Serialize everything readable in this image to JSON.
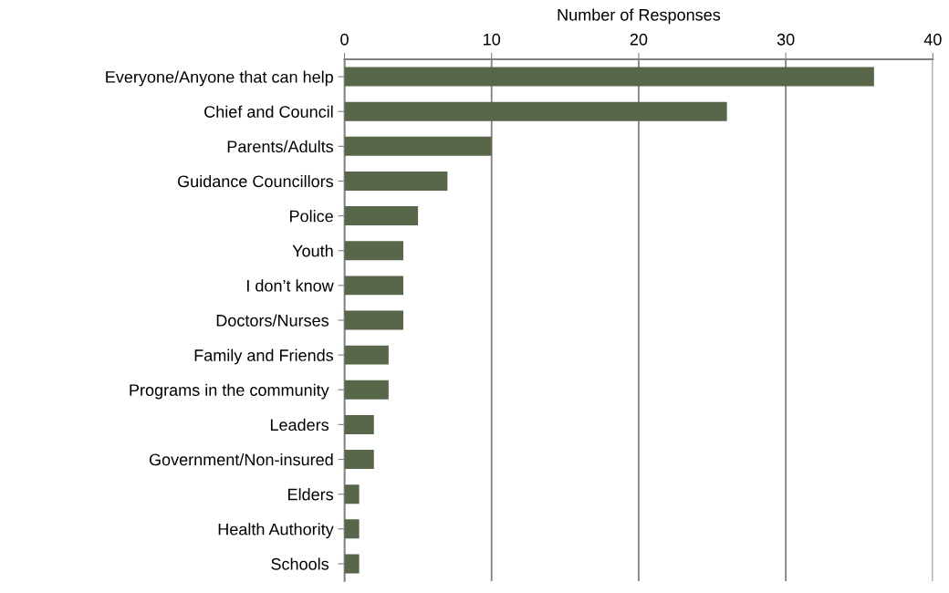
{
  "chart_data": {
    "type": "bar",
    "orientation": "horizontal",
    "xlabel": "Number of Responses",
    "categories": [
      "Everyone/Anyone that can help",
      "Chief and Council",
      "Parents/Adults",
      "Guidance Councillors",
      "Police",
      "Youth",
      "I don’t know",
      "Doctors/Nurses ",
      "Family and Friends",
      "Programs in the community ",
      "Leaders ",
      "Government/Non-insured",
      "Elders",
      "Health Authority",
      "Schools "
    ],
    "values": [
      36,
      26,
      10,
      7,
      5,
      4,
      4,
      4,
      3,
      3,
      2,
      2,
      1,
      1,
      1
    ],
    "color": "#58664a",
    "xlim": [
      0,
      40
    ],
    "xticks": [
      0,
      10,
      20,
      30,
      40
    ],
    "grid": "x",
    "legend": false
  }
}
